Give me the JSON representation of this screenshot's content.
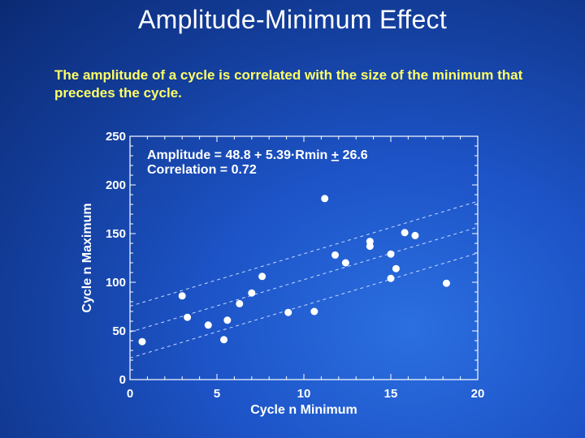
{
  "slide": {
    "title": "Amplitude-Minimum Effect",
    "subtitle": "The amplitude of a cycle is correlated with the size of the minimum that precedes the cycle."
  },
  "chart_data": {
    "type": "scatter",
    "xlabel": "Cycle n Minimum",
    "ylabel": "Cycle n Maximum",
    "xlim": [
      0,
      20
    ],
    "ylim": [
      0,
      250
    ],
    "xticks": [
      0,
      5,
      10,
      15,
      20
    ],
    "yticks": [
      0,
      50,
      100,
      150,
      200,
      250
    ],
    "annotation_line1_pre": "Amplitude = 48.8 + 5.39·Rmin ",
    "annotation_pm": "+",
    "annotation_line1_post": " 26.6",
    "annotation_line2": "Correlation =  0.72",
    "fit": {
      "intercept": 48.8,
      "slope": 5.39,
      "band": 26.6
    },
    "colors": {
      "points": "#ffffff",
      "axes": "#ffffff",
      "fit_line": "#c8d8ff"
    },
    "points": [
      {
        "x": 0.7,
        "y": 39
      },
      {
        "x": 3.0,
        "y": 86
      },
      {
        "x": 3.3,
        "y": 64
      },
      {
        "x": 4.5,
        "y": 56
      },
      {
        "x": 5.4,
        "y": 41
      },
      {
        "x": 5.6,
        "y": 61
      },
      {
        "x": 6.3,
        "y": 78
      },
      {
        "x": 7.0,
        "y": 89
      },
      {
        "x": 7.6,
        "y": 106
      },
      {
        "x": 9.1,
        "y": 69
      },
      {
        "x": 10.6,
        "y": 70
      },
      {
        "x": 11.2,
        "y": 186
      },
      {
        "x": 11.8,
        "y": 128
      },
      {
        "x": 12.4,
        "y": 120
      },
      {
        "x": 13.8,
        "y": 137
      },
      {
        "x": 13.8,
        "y": 142
      },
      {
        "x": 15.0,
        "y": 129
      },
      {
        "x": 15.0,
        "y": 104
      },
      {
        "x": 15.3,
        "y": 114
      },
      {
        "x": 15.8,
        "y": 151
      },
      {
        "x": 16.4,
        "y": 148
      },
      {
        "x": 18.2,
        "y": 99
      }
    ]
  }
}
